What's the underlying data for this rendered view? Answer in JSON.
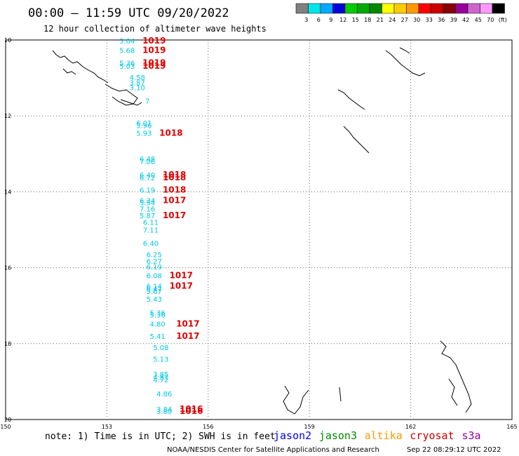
{
  "header": {
    "title": "00:00 – 11:59 UTC 09/20/2022",
    "subtitle": "12 hour collection of altimeter wave heights"
  },
  "legend": {
    "colors": [
      "#808080",
      "#00e6e6",
      "#00aaff",
      "#0000dd",
      "#00cc00",
      "#00aa00",
      "#008800",
      "#ffff00",
      "#ffcc00",
      "#ff9900",
      "#ff0000",
      "#cc0000",
      "#880000",
      "#990099",
      "#cc66cc",
      "#ff99ff",
      "#000000"
    ],
    "labels": [
      "3",
      "6",
      "9",
      "12",
      "15",
      "18",
      "21",
      "24",
      "27",
      "30",
      "33",
      "36",
      "39",
      "42",
      "45",
      "70",
      "(ft)"
    ]
  },
  "chart_data": {
    "type": "scatter",
    "title": "12 hour collection of altimeter wave heights",
    "xlim": [
      150,
      165
    ],
    "ylim": [
      -20,
      -10
    ],
    "x_ticks": [
      "150",
      "153",
      "156",
      "159",
      "162",
      "165"
    ],
    "y_ticks": [
      "10",
      "12",
      "14",
      "16",
      "18",
      "20"
    ],
    "grid": true,
    "series": [
      {
        "name": "jason2",
        "color": "#00c8e6",
        "points": [
          {
            "x": 153.6,
            "y": -10.02,
            "label": "5.04"
          },
          {
            "x": 153.6,
            "y": -10.27,
            "label": "5.68"
          },
          {
            "x": 153.6,
            "y": -10.6,
            "label": "5.36"
          },
          {
            "x": 153.6,
            "y": -10.68,
            "label": "5.03"
          },
          {
            "x": 153.9,
            "y": -10.98,
            "label": "4.58"
          },
          {
            "x": 153.9,
            "y": -11.12,
            "label": "3.87"
          },
          {
            "x": 153.9,
            "y": -11.25,
            "label": "3.10"
          },
          {
            "x": 154.2,
            "y": -11.6,
            "label": "7"
          },
          {
            "x": 154.1,
            "y": -12.18,
            "label": "6.01"
          },
          {
            "x": 154.1,
            "y": -12.25,
            "label": "5.96"
          },
          {
            "x": 154.1,
            "y": -12.45,
            "label": "5.93"
          },
          {
            "x": 154.2,
            "y": -13.12,
            "label": "6.48"
          },
          {
            "x": 154.2,
            "y": -13.2,
            "label": "7.06"
          },
          {
            "x": 154.2,
            "y": -13.55,
            "label": "6.40"
          },
          {
            "x": 154.2,
            "y": -13.62,
            "label": "6.72"
          },
          {
            "x": 154.2,
            "y": -13.95,
            "label": "6.19"
          },
          {
            "x": 154.2,
            "y": -14.22,
            "label": "6.34"
          },
          {
            "x": 154.2,
            "y": -14.28,
            "label": "5.54"
          },
          {
            "x": 154.2,
            "y": -14.45,
            "label": "7.16"
          },
          {
            "x": 154.2,
            "y": -14.62,
            "label": "5.87"
          },
          {
            "x": 154.3,
            "y": -14.8,
            "label": "6.11"
          },
          {
            "x": 154.3,
            "y": -15.0,
            "label": "7.11"
          },
          {
            "x": 154.3,
            "y": -15.35,
            "label": "6.40"
          },
          {
            "x": 154.4,
            "y": -15.65,
            "label": "6.25"
          },
          {
            "x": 154.4,
            "y": -15.82,
            "label": "6.27"
          },
          {
            "x": 154.4,
            "y": -15.97,
            "label": "6.19"
          },
          {
            "x": 154.4,
            "y": -16.2,
            "label": "6.08"
          },
          {
            "x": 154.4,
            "y": -16.48,
            "label": "6.14"
          },
          {
            "x": 154.4,
            "y": -16.55,
            "label": "6.47"
          },
          {
            "x": 154.4,
            "y": -16.62,
            "label": "5.67"
          },
          {
            "x": 154.4,
            "y": -16.82,
            "label": "5.43"
          },
          {
            "x": 154.5,
            "y": -17.18,
            "label": "5.36"
          },
          {
            "x": 154.5,
            "y": -17.24,
            "label": "5.36"
          },
          {
            "x": 154.5,
            "y": -17.48,
            "label": "4.80"
          },
          {
            "x": 154.5,
            "y": -17.8,
            "label": "5.41"
          },
          {
            "x": 154.6,
            "y": -18.1,
            "label": "5.08"
          },
          {
            "x": 154.6,
            "y": -18.4,
            "label": "5.13"
          },
          {
            "x": 154.6,
            "y": -18.8,
            "label": "3.85"
          },
          {
            "x": 154.6,
            "y": -18.88,
            "label": "4.87"
          },
          {
            "x": 154.6,
            "y": -18.95,
            "label": "4.72"
          },
          {
            "x": 154.7,
            "y": -19.32,
            "label": "4.86"
          },
          {
            "x": 154.7,
            "y": -19.72,
            "label": "3.84"
          },
          {
            "x": 154.7,
            "y": -19.78,
            "label": "3.60"
          }
        ]
      },
      {
        "name": "pressure",
        "color": "#e00000",
        "points": [
          {
            "x": 154.4,
            "y": -10.02,
            "label": "1019"
          },
          {
            "x": 154.4,
            "y": -10.27,
            "label": "1019"
          },
          {
            "x": 154.4,
            "y": -10.6,
            "label": "1019"
          },
          {
            "x": 154.4,
            "y": -10.68,
            "label": "1019"
          },
          {
            "x": 154.9,
            "y": -12.45,
            "label": "1018"
          },
          {
            "x": 155.0,
            "y": -13.55,
            "label": "1018"
          },
          {
            "x": 155.0,
            "y": -13.62,
            "label": "1018"
          },
          {
            "x": 155.0,
            "y": -13.95,
            "label": "1018"
          },
          {
            "x": 155.0,
            "y": -14.22,
            "label": "1017"
          },
          {
            "x": 155.0,
            "y": -14.62,
            "label": "1017"
          },
          {
            "x": 155.2,
            "y": -16.2,
            "label": "1017"
          },
          {
            "x": 155.2,
            "y": -16.48,
            "label": "1017"
          },
          {
            "x": 155.4,
            "y": -17.48,
            "label": "1017"
          },
          {
            "x": 155.4,
            "y": -17.8,
            "label": "1017"
          },
          {
            "x": 155.5,
            "y": -19.72,
            "label": "1016"
          },
          {
            "x": 155.5,
            "y": -19.78,
            "label": "1016"
          }
        ]
      }
    ]
  },
  "footer": {
    "note": "note: 1) Time is in UTC; 2) SWH is in feet",
    "satellites": [
      {
        "name": "jason2",
        "color": "#0000ff"
      },
      {
        "name": "jason3",
        "color": "#008800"
      },
      {
        "name": "altika",
        "color": "#ff9900"
      },
      {
        "name": "cryosat",
        "color": "#cc0000"
      },
      {
        "name": "s3a",
        "color": "#990099"
      }
    ],
    "credit_left": "NOAA/NESDIS Center for Satellite Applications and Research",
    "credit_right": "Sep 22 08:29:12 UTC 2022"
  }
}
